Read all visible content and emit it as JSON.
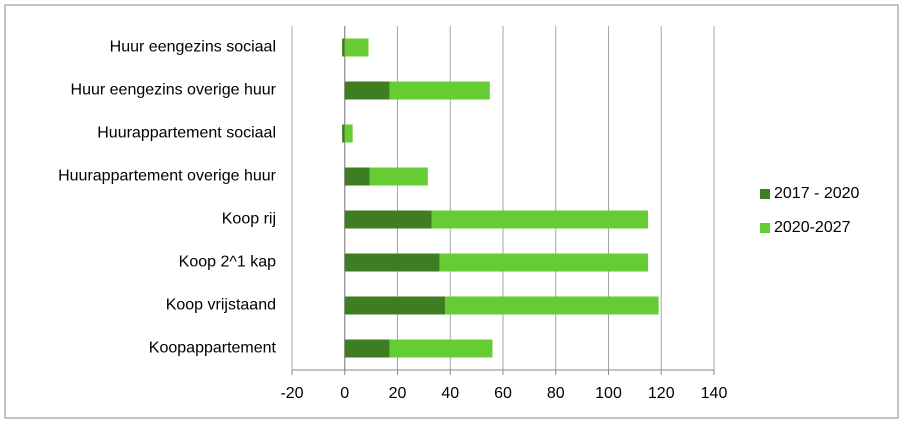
{
  "chart_data": {
    "type": "stacked-barh",
    "categories": [
      "Huur eengezins sociaal",
      "Huur eengezins overige huur",
      "Huurappartement sociaal",
      "Huurappartement overige huur",
      "Koop rij",
      "Koop 2^1 kap",
      "Koop vrijstaand",
      "Koopappartement"
    ],
    "series": [
      {
        "name": "2017 - 2020",
        "color": "#3e7d22",
        "values": [
          -1,
          17,
          -1,
          9.5,
          33,
          36,
          38,
          17
        ]
      },
      {
        "name": "2020-2027",
        "color": "#66cc33",
        "values": [
          9,
          38,
          3,
          22,
          82,
          79,
          81,
          39
        ]
      }
    ],
    "xlim": [
      -20,
      140
    ],
    "xticks": [
      -20,
      0,
      20,
      40,
      60,
      80,
      100,
      120,
      140
    ],
    "grid": true,
    "legend": "right"
  }
}
